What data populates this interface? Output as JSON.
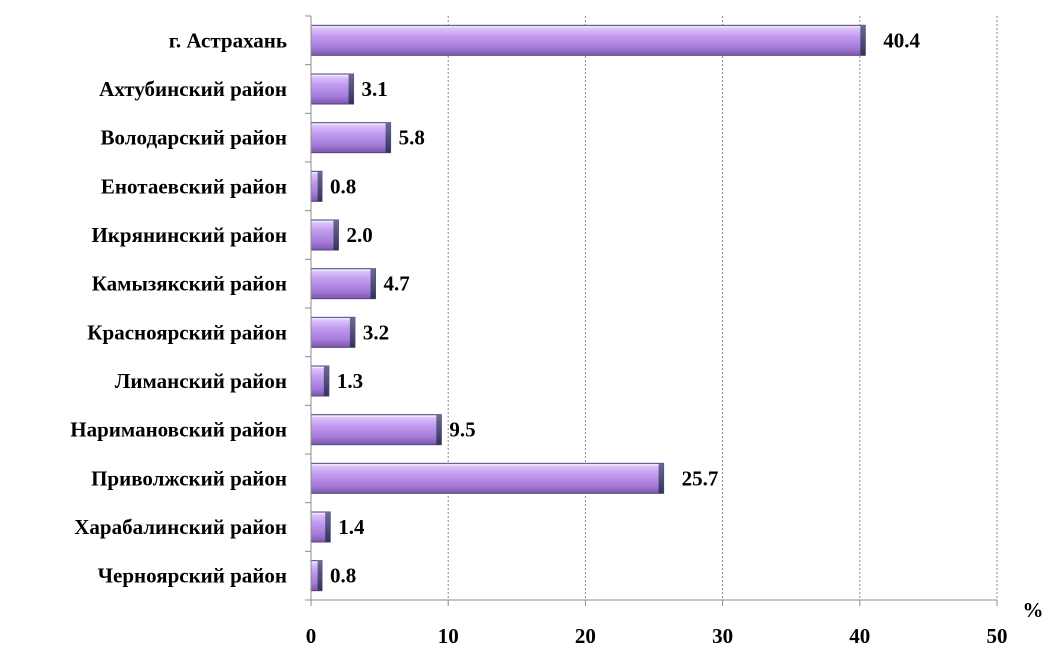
{
  "chart_data": {
    "type": "bar",
    "orientation": "horizontal",
    "title": "",
    "xlabel": "%",
    "ylabel": "",
    "xlim": [
      0,
      50
    ],
    "x_ticks": [
      0,
      10,
      20,
      30,
      40,
      50
    ],
    "grid": "vertical, dashed",
    "legend": "none",
    "bar_color": "#b48ee8",
    "bar_edge_color": "#4a4a7a",
    "categories": [
      "г. Астрахань",
      "Ахтубинский район",
      "Володарский район",
      "Енотаевский район",
      "Икрянинский район",
      "Камызякский район",
      "Красноярский район",
      "Лиманский район",
      "Наримановский район",
      "Приволжский район",
      "Харабалинский район",
      "Черноярский район"
    ],
    "values": [
      40.4,
      3.1,
      5.8,
      0.8,
      2.0,
      4.7,
      3.2,
      1.3,
      9.5,
      25.7,
      1.4,
      0.8
    ],
    "value_labels": [
      "40.4",
      "3.1",
      "5.8",
      "0.8",
      "2.0",
      "4.7",
      "3.2",
      "1.3",
      "9.5",
      "25.7",
      "1.4",
      "0.8"
    ]
  }
}
